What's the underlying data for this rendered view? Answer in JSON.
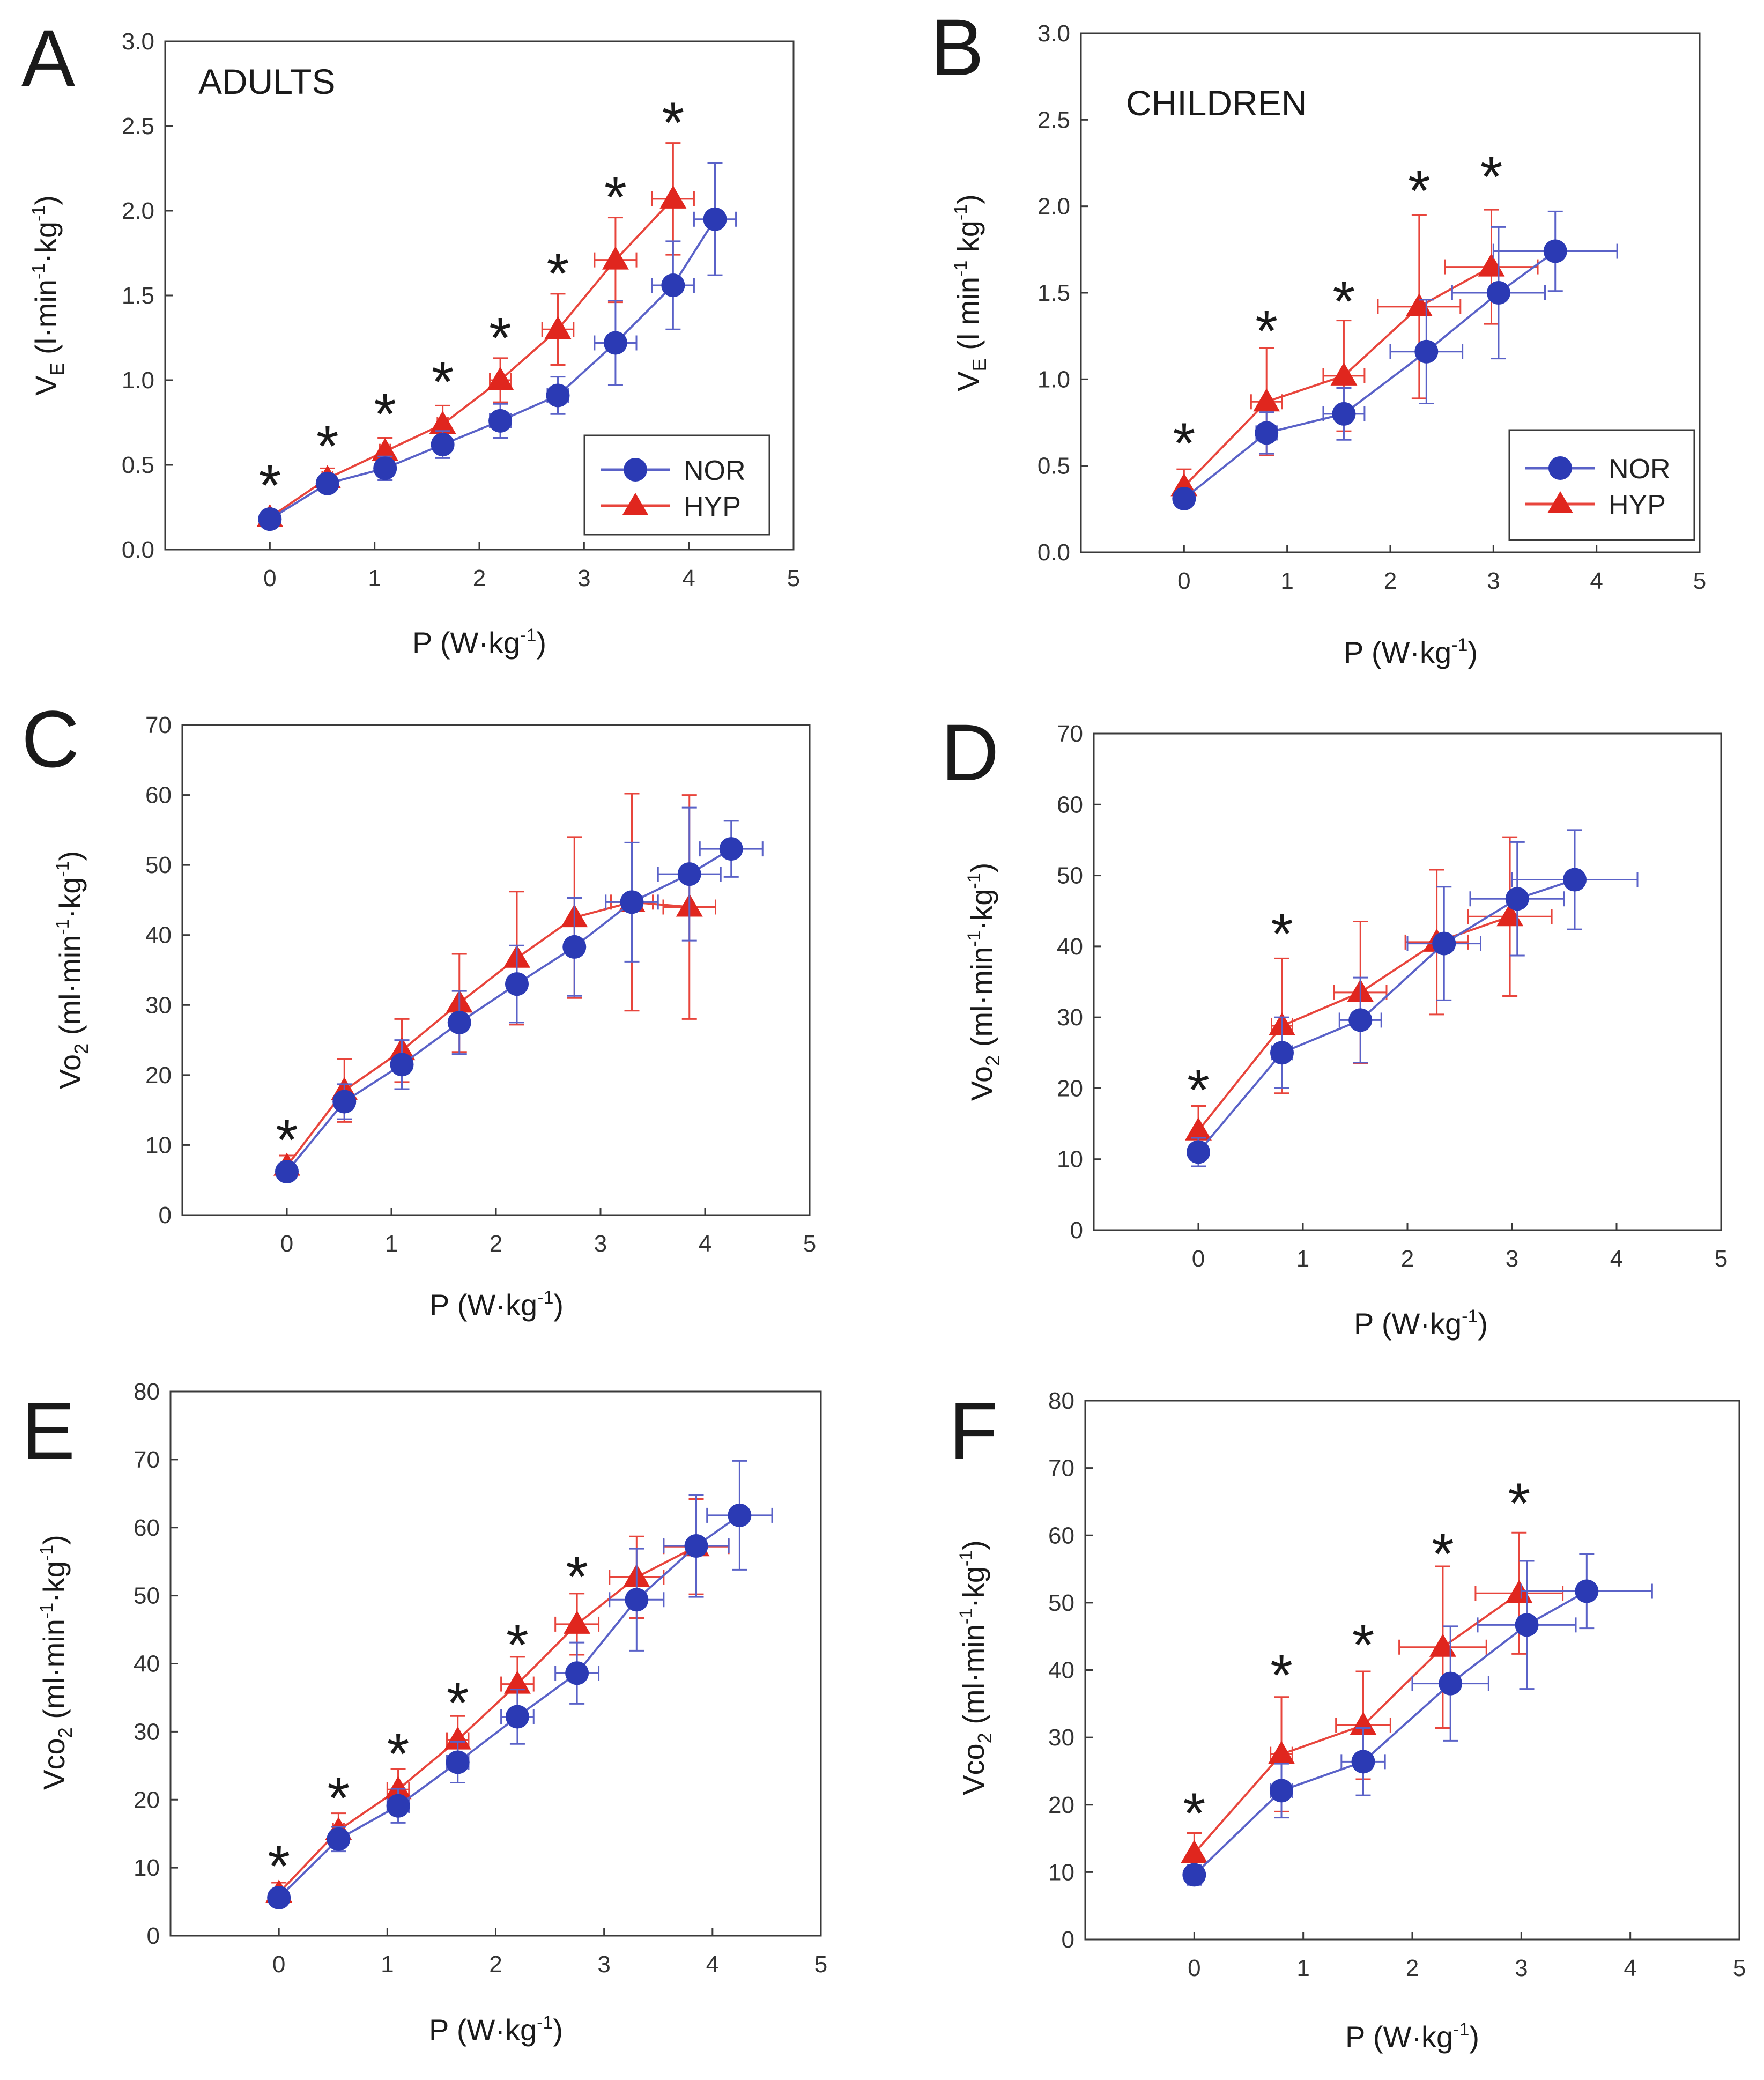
{
  "figure": {
    "legend": {
      "nor": "NOR",
      "hyp": "HYP"
    },
    "colors": {
      "nor": "#2b3ab4",
      "hyp": "#e0261e",
      "nor_line": "#5a62c8",
      "hyp_line": "#e8453c"
    }
  },
  "chart_data": [
    {
      "panel": "A",
      "group_label": "ADULTS",
      "type": "line",
      "xlabel": {
        "main": "P (W·kg",
        "sup": "-1",
        "tail": ")"
      },
      "ylabel": {
        "main": "V",
        "sub": "E",
        "mid": " (l·min",
        "sup1": "-1",
        "mid2": "·kg",
        "sup2": "-1",
        "tail": ")"
      },
      "xlim": [
        -1,
        5
      ],
      "ylim": [
        0,
        3.0
      ],
      "xticks": [
        "0",
        "1",
        "2",
        "3",
        "4",
        "5"
      ],
      "yticks": [
        "0.0",
        "0.5",
        "1.0",
        "1.5",
        "2.0",
        "2.5",
        "3.0"
      ],
      "ytick_values": [
        0,
        0.5,
        1.0,
        1.5,
        2.0,
        2.5,
        3.0
      ],
      "legend_pos": "bottom-right",
      "series": [
        {
          "name": "NOR",
          "x": [
            0,
            0.55,
            1.1,
            1.65,
            2.2,
            2.75,
            3.3,
            3.85,
            4.25
          ],
          "y": [
            0.18,
            0.39,
            0.48,
            0.62,
            0.76,
            0.91,
            1.22,
            1.56,
            1.95
          ],
          "yerr": [
            0.03,
            0.05,
            0.07,
            0.08,
            0.1,
            0.11,
            0.25,
            0.26,
            0.33
          ],
          "xerr": [
            0.05,
            0.05,
            0.05,
            0.05,
            0.1,
            0.1,
            0.2,
            0.2,
            0.2
          ]
        },
        {
          "name": "HYP",
          "x": [
            0,
            0.55,
            1.1,
            1.65,
            2.2,
            2.75,
            3.3,
            3.85
          ],
          "y": [
            0.19,
            0.42,
            0.58,
            0.74,
            1.0,
            1.3,
            1.71,
            2.07
          ],
          "yerr": [
            0.04,
            0.06,
            0.08,
            0.11,
            0.13,
            0.21,
            0.25,
            0.33
          ],
          "xerr": [
            0.05,
            0.05,
            0.05,
            0.05,
            0.1,
            0.15,
            0.2,
            0.2
          ]
        }
      ],
      "significance": {
        "symbol": "*",
        "x": [
          0,
          0.55,
          1.1,
          1.65,
          2.2,
          2.75,
          3.3,
          3.85
        ],
        "y": [
          0.39,
          0.62,
          0.81,
          1.0,
          1.26,
          1.64,
          2.09,
          2.53
        ]
      }
    },
    {
      "panel": "B",
      "group_label": "CHILDREN",
      "type": "line",
      "xlabel": {
        "main": "P (W·kg",
        "sup": "-1",
        "tail": ")"
      },
      "ylabel": {
        "main": "V",
        "sub": "E",
        "mid": " (l min",
        "sup1": "-1",
        "mid2": " kg",
        "sup2": "-1",
        "tail": ")"
      },
      "xlim": [
        -1,
        5
      ],
      "ylim": [
        0,
        3.0
      ],
      "xticks": [
        "0",
        "1",
        "2",
        "3",
        "4",
        "5"
      ],
      "yticks": [
        "0.0",
        "0.5",
        "1.0",
        "1.5",
        "2.0",
        "2.5",
        "3.0"
      ],
      "ytick_values": [
        0,
        0.5,
        1.0,
        1.5,
        2.0,
        2.5,
        3.0
      ],
      "legend_pos": "bottom-right",
      "series": [
        {
          "name": "NOR",
          "x": [
            0,
            0.8,
            1.55,
            2.35,
            3.05,
            3.6
          ],
          "y": [
            0.31,
            0.69,
            0.8,
            1.16,
            1.5,
            1.74
          ],
          "yerr": [
            0.04,
            0.12,
            0.15,
            0.3,
            0.38,
            0.23
          ],
          "xerr": [
            0,
            0.1,
            0.2,
            0.35,
            0.45,
            0.6
          ]
        },
        {
          "name": "HYP",
          "x": [
            0,
            0.8,
            1.55,
            2.28,
            2.98
          ],
          "y": [
            0.38,
            0.87,
            1.02,
            1.42,
            1.65
          ],
          "yerr": [
            0.1,
            0.31,
            0.32,
            0.53,
            0.33
          ],
          "xerr": [
            0,
            0.15,
            0.2,
            0.4,
            0.45
          ]
        }
      ],
      "significance": {
        "symbol": "*",
        "x": [
          0,
          0.8,
          1.55,
          2.28,
          2.98
        ],
        "y": [
          0.64,
          1.29,
          1.46,
          2.1,
          2.18
        ]
      }
    },
    {
      "panel": "C",
      "type": "line",
      "xlabel": {
        "main": "P (W·kg",
        "sup": "-1",
        "tail": ")"
      },
      "ylabel": {
        "main": "Vo",
        "sub": "2",
        "mid": " (ml·min",
        "sup1": "-1",
        "mid2": "·kg",
        "sup2": "-1",
        "tail": ")"
      },
      "xlim": [
        -1,
        5
      ],
      "ylim": [
        0,
        70
      ],
      "xticks": [
        "0",
        "1",
        "2",
        "3",
        "4",
        "5"
      ],
      "yticks": [
        "0",
        "10",
        "20",
        "30",
        "40",
        "50",
        "60",
        "70"
      ],
      "ytick_values": [
        0,
        10,
        20,
        30,
        40,
        50,
        60,
        70
      ],
      "series": [
        {
          "name": "NOR",
          "x": [
            0,
            0.55,
            1.1,
            1.65,
            2.2,
            2.75,
            3.3,
            3.85,
            4.25
          ],
          "y": [
            6.2,
            16.2,
            21.5,
            27.5,
            33,
            38.3,
            44.7,
            48.7,
            52.3
          ],
          "yerr": [
            1,
            2.5,
            3.5,
            4.5,
            5.5,
            7,
            8.5,
            9.5,
            4
          ],
          "xerr": [
            0,
            0,
            0,
            0,
            0,
            0,
            0.25,
            0.3,
            0.3
          ]
        },
        {
          "name": "HYP",
          "x": [
            0,
            0.55,
            1.1,
            1.65,
            2.2,
            2.75,
            3.3,
            3.85
          ],
          "y": [
            7,
            17.8,
            23.5,
            30.3,
            36.7,
            42.5,
            44.7,
            44
          ],
          "yerr": [
            1.5,
            4.5,
            4.5,
            7,
            9.5,
            11.5,
            15.5,
            16
          ],
          "xerr": [
            0,
            0,
            0,
            0,
            0,
            0,
            0.2,
            0.25
          ]
        }
      ],
      "significance": {
        "symbol": "*",
        "x": [
          0
        ],
        "y": [
          11
        ]
      }
    },
    {
      "panel": "D",
      "type": "line",
      "xlabel": {
        "main": "P (W·kg",
        "sup": "-1",
        "tail": ")"
      },
      "ylabel": {
        "main": "Vo",
        "sub": "2",
        "mid": " (ml·min",
        "sup1": "-1",
        "mid2": "·kg",
        "sup2": "-1",
        "tail": ")"
      },
      "xlim": [
        -1,
        5
      ],
      "ylim": [
        0,
        70
      ],
      "xticks": [
        "0",
        "1",
        "2",
        "3",
        "4",
        "5"
      ],
      "yticks": [
        "0",
        "10",
        "20",
        "30",
        "40",
        "50",
        "60",
        "70"
      ],
      "ytick_values": [
        0,
        10,
        20,
        30,
        40,
        50,
        60,
        70
      ],
      "series": [
        {
          "name": "NOR",
          "x": [
            0,
            0.8,
            1.55,
            2.35,
            3.05,
            3.6
          ],
          "y": [
            11,
            25,
            29.6,
            40.4,
            46.7,
            49.4
          ],
          "yerr": [
            2,
            5,
            6,
            8,
            8,
            7
          ],
          "xerr": [
            0,
            0.1,
            0.2,
            0.35,
            0.45,
            0.6
          ]
        },
        {
          "name": "HYP",
          "x": [
            0,
            0.8,
            1.55,
            2.28,
            2.98
          ],
          "y": [
            14,
            28.8,
            33.5,
            40.6,
            44.2
          ],
          "yerr": [
            3.5,
            9.5,
            10,
            10.2,
            11.2
          ],
          "xerr": [
            0,
            0.1,
            0.25,
            0.3,
            0.4
          ]
        }
      ],
      "significance": {
        "symbol": "*",
        "x": [
          0,
          0.8
        ],
        "y": [
          20,
          42
        ]
      }
    },
    {
      "panel": "E",
      "type": "line",
      "xlabel": {
        "main": "P (W·kg",
        "sup": "-1",
        "tail": ")"
      },
      "ylabel": {
        "main": "Vco",
        "sub": "2",
        "mid": " (ml·min",
        "sup1": "-1",
        "mid2": "·kg",
        "sup2": "-1",
        "tail": ")"
      },
      "xlim": [
        -1,
        5
      ],
      "ylim": [
        0,
        80
      ],
      "xticks": [
        "0",
        "1",
        "2",
        "3",
        "4",
        "5"
      ],
      "yticks": [
        "0",
        "10",
        "20",
        "30",
        "40",
        "50",
        "60",
        "70",
        "80"
      ],
      "ytick_values": [
        0,
        10,
        20,
        30,
        40,
        50,
        60,
        70,
        80
      ],
      "series": [
        {
          "name": "NOR",
          "x": [
            0,
            0.55,
            1.1,
            1.65,
            2.2,
            2.75,
            3.3,
            3.85,
            4.25
          ],
          "y": [
            5.6,
            14.2,
            19.1,
            25.5,
            32.2,
            38.6,
            49.4,
            57.3,
            61.8
          ],
          "yerr": [
            1,
            1.8,
            2.5,
            3,
            4,
            4.5,
            7.5,
            7.5,
            8
          ],
          "xerr": [
            0,
            0.05,
            0.1,
            0.1,
            0.15,
            0.2,
            0.25,
            0.3,
            0.3
          ]
        },
        {
          "name": "HYP",
          "x": [
            0,
            0.55,
            1.1,
            1.65,
            2.2,
            2.75,
            3.3,
            3.85
          ],
          "y": [
            6.3,
            15.5,
            21.5,
            28.8,
            37.0,
            45.8,
            52.7,
            57.2
          ],
          "yerr": [
            1.5,
            2.5,
            3,
            3.5,
            4,
            4.5,
            6,
            7
          ],
          "xerr": [
            0,
            0.05,
            0.1,
            0.1,
            0.15,
            0.2,
            0.25,
            0.3
          ]
        }
      ],
      "significance": {
        "symbol": "*",
        "x": [
          0,
          0.55,
          1.1,
          1.65,
          2.2,
          2.75
        ],
        "y": [
          10.5,
          20.5,
          27,
          34.5,
          43,
          53
        ]
      }
    },
    {
      "panel": "F",
      "type": "line",
      "xlabel": {
        "main": "P (W·kg",
        "sup": "-1",
        "tail": ")"
      },
      "ylabel": {
        "main": "Vco",
        "sub": "2",
        "mid": " (ml·min",
        "sup1": "-1",
        "mid2": "·kg",
        "sup2": "-1",
        "tail": ")"
      },
      "xlim": [
        -1,
        5
      ],
      "ylim": [
        0,
        80
      ],
      "xticks": [
        "0",
        "1",
        "2",
        "3",
        "4",
        "5"
      ],
      "yticks": [
        "0",
        "10",
        "20",
        "30",
        "40",
        "50",
        "60",
        "70",
        "80"
      ],
      "ytick_values": [
        0,
        10,
        20,
        30,
        40,
        50,
        60,
        70,
        80
      ],
      "series": [
        {
          "name": "NOR",
          "x": [
            0,
            0.8,
            1.55,
            2.35,
            3.05,
            3.6
          ],
          "y": [
            9.6,
            22.1,
            26.4,
            38.0,
            46.7,
            51.7
          ],
          "yerr": [
            1.5,
            4,
            5,
            8.5,
            9.5,
            5.5
          ],
          "xerr": [
            0,
            0.1,
            0.2,
            0.35,
            0.45,
            0.6
          ]
        },
        {
          "name": "HYP",
          "x": [
            0,
            0.8,
            1.55,
            2.28,
            2.98
          ],
          "y": [
            12.8,
            27.5,
            31.8,
            43.4,
            51.4
          ],
          "yerr": [
            3,
            8.5,
            8,
            12,
            9
          ],
          "xerr": [
            0,
            0.1,
            0.25,
            0.4,
            0.4
          ]
        }
      ],
      "significance": {
        "symbol": "*",
        "x": [
          0,
          0.8,
          1.55,
          2.28,
          2.98
        ],
        "y": [
          19,
          39.5,
          44,
          57.5,
          65
        ]
      }
    }
  ]
}
